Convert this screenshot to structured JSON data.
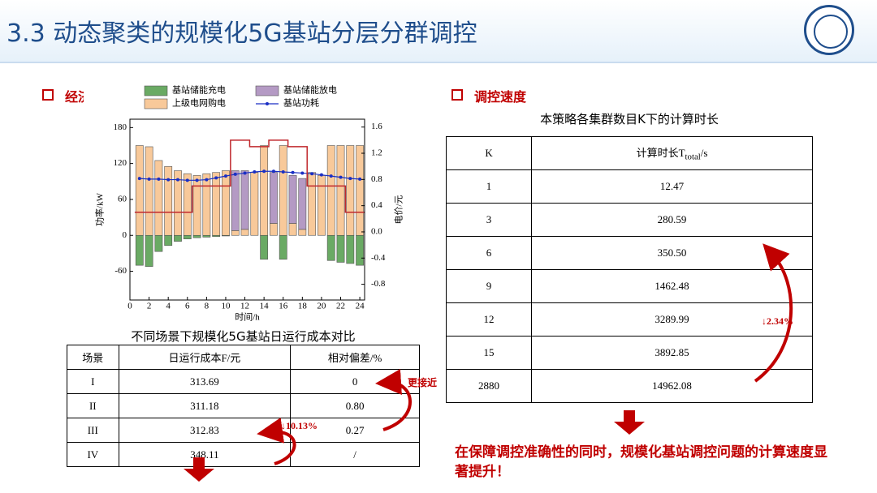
{
  "header": {
    "title": "3.3 动态聚类的规模化5G基站分层分群调控"
  },
  "sections": [
    "经济性",
    "调控速度"
  ],
  "chart_data": {
    "type": "bar",
    "xlabel": "时间/h",
    "ylabel": "功率/kW",
    "y2label": "电价/元",
    "x": [
      1,
      2,
      3,
      4,
      5,
      6,
      7,
      8,
      9,
      10,
      11,
      12,
      13,
      14,
      15,
      16,
      17,
      18,
      19,
      20,
      21,
      22,
      23,
      24
    ],
    "xlim": [
      0,
      24.5
    ],
    "xticks": [
      0,
      2,
      4,
      6,
      8,
      10,
      12,
      14,
      16,
      18,
      20,
      22,
      24
    ],
    "ylim": [
      -108,
      194
    ],
    "yticks": [
      -60,
      0,
      60,
      120,
      180
    ],
    "y2lim": [
      -1.04,
      1.72
    ],
    "y2ticks": [
      -0.8,
      -0.4,
      {
        "value": 0,
        "label": "0.0"
      },
      0.4,
      0.8,
      1.2,
      1.6
    ],
    "series": [
      {
        "name": "基站储能充电",
        "color": "#6aaa64",
        "kind": "bar",
        "values": [
          -50,
          -52,
          -27,
          -17,
          -10,
          -6,
          -4,
          -3,
          -2,
          -1,
          0,
          0,
          0,
          -40,
          0,
          -40,
          0,
          0,
          0,
          0,
          -42,
          -45,
          -47,
          -50
        ]
      },
      {
        "name": "上级电网购电",
        "color": "#f8c99a",
        "kind": "bar",
        "values": [
          150,
          148,
          125,
          115,
          108,
          103,
          100,
          103,
          105,
          108,
          8,
          10,
          105,
          150,
          20,
          150,
          20,
          10,
          105,
          100,
          150,
          150,
          150,
          150
        ]
      },
      {
        "name": "基站储能放电",
        "color": "#b49ac4",
        "kind": "bar",
        "values": [
          0,
          0,
          0,
          0,
          0,
          0,
          0,
          0,
          0,
          0,
          100,
          98,
          0,
          0,
          85,
          0,
          80,
          85,
          0,
          0,
          0,
          0,
          0,
          0
        ]
      },
      {
        "name": "基站功耗",
        "color": "#1a2fc4",
        "kind": "line",
        "values": [
          95,
          94,
          94,
          93,
          93,
          92,
          92,
          93,
          96,
          99,
          102,
          104,
          106,
          107,
          107,
          106,
          105,
          104,
          103,
          101,
          99,
          97,
          95,
          94
        ]
      },
      {
        "color": "#c0282d",
        "kind": "step",
        "axis": "y2",
        "values": [
          0.3,
          0.3,
          0.3,
          0.3,
          0.3,
          0.3,
          0.7,
          0.7,
          0.7,
          0.7,
          1.4,
          1.4,
          1.3,
          1.3,
          1.4,
          1.4,
          1.3,
          1.3,
          0.7,
          0.7,
          0.7,
          0.7,
          0.3,
          0.3
        ]
      }
    ]
  },
  "cost_table": {
    "caption": "不同场景下规模化5G基站日运行成本对比",
    "header": [
      "场景",
      "日运行成本F/元",
      "相对偏差/%"
    ],
    "rows": [
      [
        "I",
        "313.69",
        "0"
      ],
      [
        "II",
        "311.18",
        "0.80"
      ],
      [
        "III",
        "312.83",
        "0.27"
      ],
      [
        "IV",
        "348.11",
        "/"
      ]
    ]
  },
  "speed_table": {
    "caption": "本策略各集群数目K下的计算时长",
    "header": [
      "K",
      [
        "计算时长T",
        "total",
        "/s"
      ]
    ],
    "rows": [
      [
        "1",
        "12.47"
      ],
      [
        "3",
        "280.59"
      ],
      [
        "6",
        "350.50"
      ],
      [
        "9",
        "1462.48"
      ],
      [
        "12",
        "3289.99"
      ],
      [
        "15",
        "3892.85"
      ],
      [
        "2880",
        "14962.08"
      ]
    ]
  },
  "annotations": {
    "closer": "更接近",
    "cost_drop": "↓10.13%",
    "time_drop": "↓2.34%"
  },
  "conclusion": "在保障调控准确性的同时，规模化基站调控问题的计算速度显著提升！"
}
